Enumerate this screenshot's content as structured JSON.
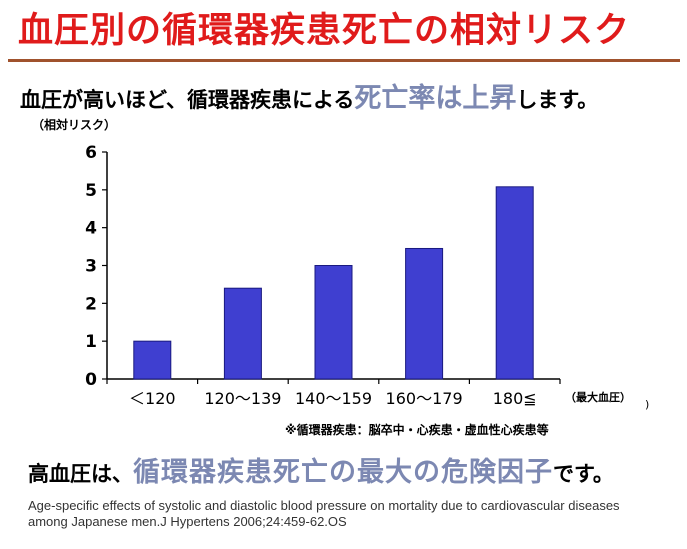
{
  "title": "血圧別の循環器疾患死亡の相対リスク",
  "subtitle": {
    "before": "血圧が高いほど、循環器疾患による",
    "highlight": "死亡率は上昇",
    "after": "します。"
  },
  "footnote": "※循環器疾患：脳卒中・心疾患・虚血性心疾患等",
  "conclusion": {
    "before": "高血圧は、",
    "highlight": "循環器疾患死亡の最大の危険因子",
    "after": "です。"
  },
  "citation": "Age-specific effects of systolic and diastolic blood pressure on mortality due to cardiovascular diseases among Japanese men.J Hypertens 2006;24:459-62.OS",
  "stray_mark": ")",
  "colors": {
    "title": "#e01b1b",
    "highlight": "#7c88b2",
    "bar": "#3f3fd0",
    "rule": "#a0522d"
  },
  "chart_data": {
    "type": "bar",
    "categories": [
      "＜120",
      "120～139",
      "140～159",
      "160～179",
      "180≦"
    ],
    "values": [
      1.0,
      2.4,
      3.0,
      3.45,
      5.08
    ],
    "ylabel": "（相対リスク）",
    "xlabel": "（最大血圧）",
    "ylim": [
      0,
      6
    ],
    "yticks": [
      0,
      1,
      2,
      3,
      4,
      5,
      6
    ],
    "grid": false
  }
}
